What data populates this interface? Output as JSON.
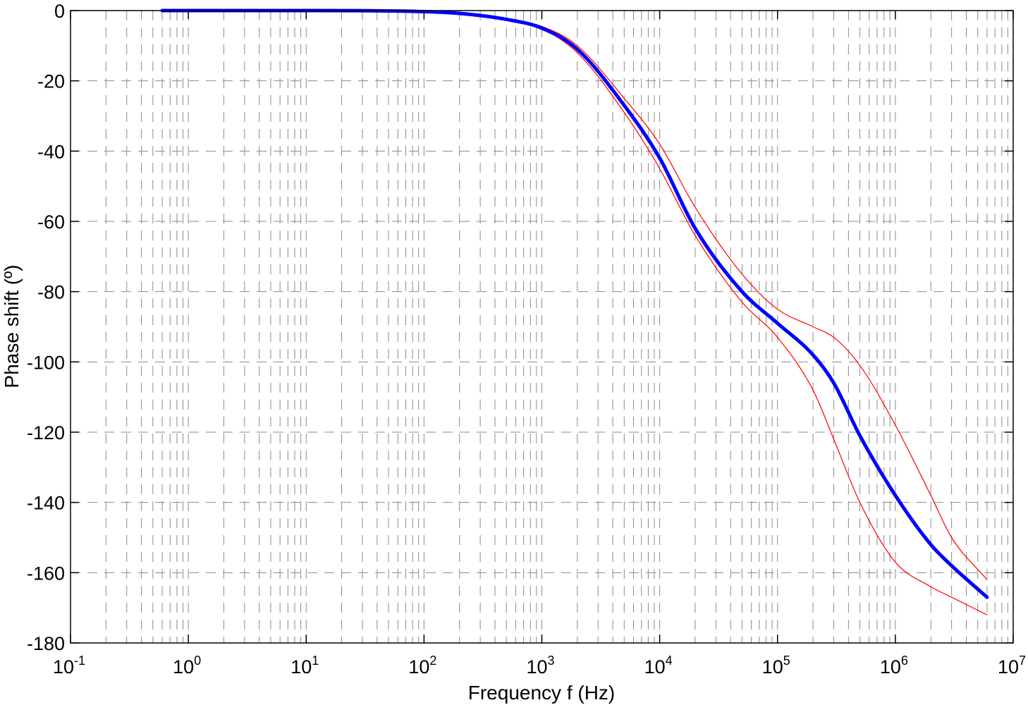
{
  "chart_data": {
    "type": "line",
    "xlabel": "Frequency f (Hz)",
    "ylabel": "Phase shift (º)",
    "x_scale": "log",
    "xlim": [
      0.1,
      10000000
    ],
    "ylim": [
      -180,
      0
    ],
    "grid": true,
    "x_ticks": [
      {
        "base": "10",
        "exp": "-1",
        "value": 0.1
      },
      {
        "base": "10",
        "exp": "0",
        "value": 1
      },
      {
        "base": "10",
        "exp": "1",
        "value": 10
      },
      {
        "base": "10",
        "exp": "2",
        "value": 100
      },
      {
        "base": "10",
        "exp": "3",
        "value": 1000
      },
      {
        "base": "10",
        "exp": "4",
        "value": 10000
      },
      {
        "base": "10",
        "exp": "5",
        "value": 100000
      },
      {
        "base": "10",
        "exp": "6",
        "value": 1000000
      },
      {
        "base": "10",
        "exp": "7",
        "value": 10000000
      }
    ],
    "y_ticks": [
      "0",
      "-20",
      "-40",
      "-60",
      "-80",
      "-100",
      "-120",
      "-140",
      "-160",
      "-180"
    ],
    "series": [
      {
        "color": "#ff0000",
        "line_width": "thin",
        "x": [
          0.6,
          10,
          100,
          200,
          500,
          1000,
          2000,
          5000,
          10000,
          20000,
          50000,
          100000,
          200000,
          300000,
          500000,
          1000000,
          2000000,
          3000000,
          6000000
        ],
        "y": [
          0,
          0,
          -0.3,
          -0.8,
          -2.5,
          -4.5,
          -10,
          -25,
          -38,
          -56,
          -75,
          -85,
          -90,
          -93,
          -101,
          -118,
          -138,
          -150,
          -162
        ]
      },
      {
        "color": "#0000ff",
        "line_width": "thick",
        "x": [
          0.6,
          10,
          100,
          200,
          500,
          1000,
          2000,
          5000,
          10000,
          20000,
          50000,
          100000,
          200000,
          300000,
          500000,
          1000000,
          2000000,
          3000000,
          6000000
        ],
        "y": [
          0,
          0,
          -0.3,
          -0.8,
          -2.5,
          -5,
          -11,
          -27,
          -42,
          -62,
          -80,
          -89,
          -98,
          -106,
          -121,
          -138,
          -152,
          -158,
          -167
        ]
      },
      {
        "color": "#ff0000",
        "line_width": "thin",
        "x": [
          0.6,
          10,
          100,
          200,
          500,
          1000,
          2000,
          5000,
          10000,
          20000,
          50000,
          100000,
          200000,
          300000,
          500000,
          1000000,
          2000000,
          3000000,
          6000000
        ],
        "y": [
          0,
          0,
          -0.3,
          -0.8,
          -2.5,
          -5.2,
          -12,
          -29,
          -45,
          -64,
          -83,
          -93,
          -108,
          -122,
          -140,
          -157,
          -164,
          -167,
          -172
        ]
      }
    ]
  }
}
